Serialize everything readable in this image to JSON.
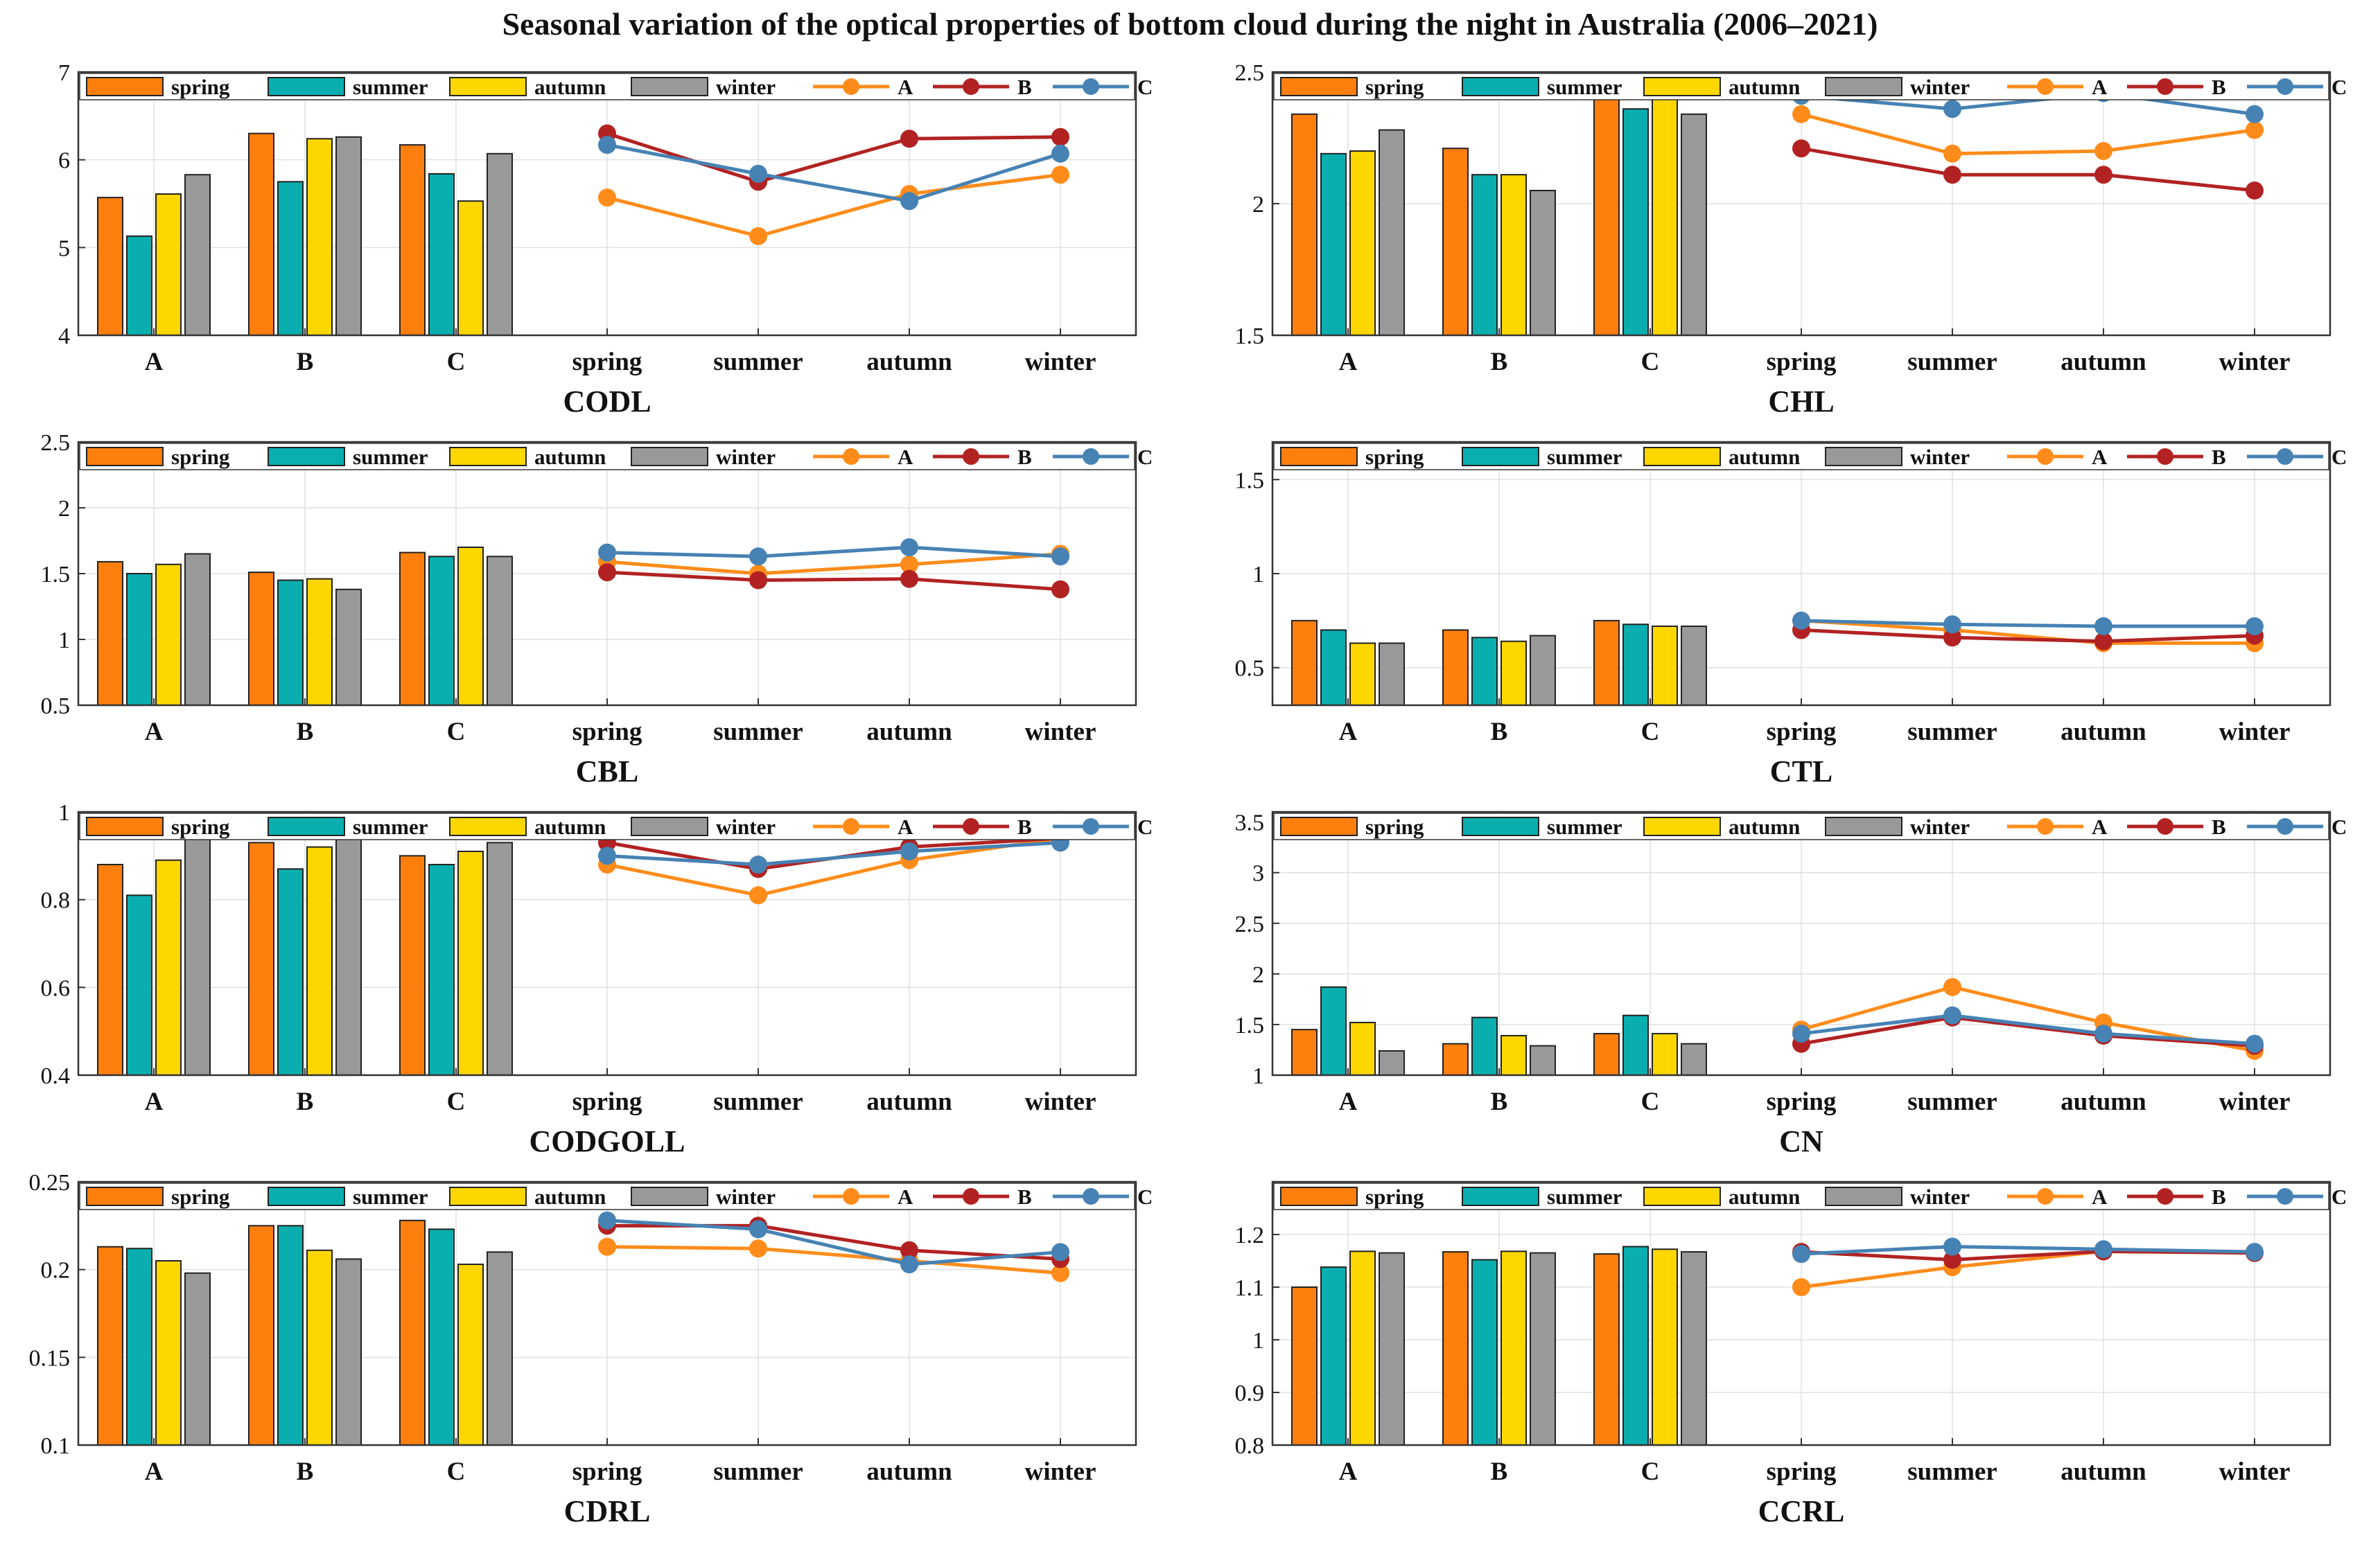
{
  "title": "Seasonal variation of the optical properties of bottom cloud during the night in Australia (2006–2021)",
  "colors": {
    "spring": "#ff7f0e",
    "summer": "#0aaeae",
    "autumn": "#ffd700",
    "winter": "#999999",
    "A": "#ff8c1a",
    "B": "#b22222",
    "C": "#4682b4"
  },
  "legend": {
    "bars": [
      "spring",
      "summer",
      "autumn",
      "winter"
    ],
    "lines": [
      "A",
      "B",
      "C"
    ]
  },
  "chart_data": [
    {
      "type": "bar+line",
      "title": "CODL",
      "ylim": [
        4,
        7
      ],
      "yticks": [
        "4",
        "5",
        "6",
        "7"
      ],
      "grid": true,
      "categories": [
        "A",
        "B",
        "C",
        "spring",
        "summer",
        "autumn",
        "winter"
      ],
      "bar_series": [
        {
          "name": "spring",
          "values": [
            5.57,
            6.3,
            6.17
          ]
        },
        {
          "name": "summer",
          "values": [
            5.13,
            5.75,
            5.84
          ]
        },
        {
          "name": "autumn",
          "values": [
            5.61,
            6.24,
            5.53
          ]
        },
        {
          "name": "winter",
          "values": [
            5.83,
            6.26,
            6.07
          ]
        }
      ],
      "line_series": [
        {
          "name": "A",
          "values": [
            5.57,
            5.13,
            5.61,
            5.83
          ]
        },
        {
          "name": "B",
          "values": [
            6.3,
            5.75,
            6.24,
            6.26
          ]
        },
        {
          "name": "C",
          "values": [
            6.17,
            5.84,
            5.53,
            6.07
          ]
        }
      ]
    },
    {
      "type": "bar+line",
      "title": "CHL",
      "ylim": [
        1.5,
        2.5
      ],
      "yticks": [
        "1.5",
        "2",
        "2.5"
      ],
      "grid": true,
      "categories": [
        "A",
        "B",
        "C",
        "spring",
        "summer",
        "autumn",
        "winter"
      ],
      "bar_series": [
        {
          "name": "spring",
          "values": [
            2.34,
            2.21,
            2.41
          ]
        },
        {
          "name": "summer",
          "values": [
            2.19,
            2.11,
            2.36
          ]
        },
        {
          "name": "autumn",
          "values": [
            2.2,
            2.11,
            2.42
          ]
        },
        {
          "name": "winter",
          "values": [
            2.28,
            2.05,
            2.34
          ]
        }
      ],
      "line_series": [
        {
          "name": "A",
          "values": [
            2.34,
            2.19,
            2.2,
            2.28
          ]
        },
        {
          "name": "B",
          "values": [
            2.21,
            2.11,
            2.11,
            2.05
          ]
        },
        {
          "name": "C",
          "values": [
            2.41,
            2.36,
            2.42,
            2.34
          ]
        }
      ]
    },
    {
      "type": "bar+line",
      "title": "CBL",
      "ylim": [
        0.5,
        2.5
      ],
      "yticks": [
        "0.5",
        "1",
        "1.5",
        "2",
        "2.5"
      ],
      "grid": true,
      "categories": [
        "A",
        "B",
        "C",
        "spring",
        "summer",
        "autumn",
        "winter"
      ],
      "bar_series": [
        {
          "name": "spring",
          "values": [
            1.59,
            1.51,
            1.66
          ]
        },
        {
          "name": "summer",
          "values": [
            1.5,
            1.45,
            1.63
          ]
        },
        {
          "name": "autumn",
          "values": [
            1.57,
            1.46,
            1.7
          ]
        },
        {
          "name": "winter",
          "values": [
            1.65,
            1.38,
            1.63
          ]
        }
      ],
      "line_series": [
        {
          "name": "A",
          "values": [
            1.59,
            1.5,
            1.57,
            1.65
          ]
        },
        {
          "name": "B",
          "values": [
            1.51,
            1.45,
            1.46,
            1.38
          ]
        },
        {
          "name": "C",
          "values": [
            1.66,
            1.63,
            1.7,
            1.63
          ]
        }
      ]
    },
    {
      "type": "bar+line",
      "title": "CTL",
      "ylim": [
        0.3,
        1.7
      ],
      "yticks": [
        "0.5",
        "1",
        "1.5"
      ],
      "grid": true,
      "categories": [
        "A",
        "B",
        "C",
        "spring",
        "summer",
        "autumn",
        "winter"
      ],
      "bar_series": [
        {
          "name": "spring",
          "values": [
            0.75,
            0.7,
            0.75
          ]
        },
        {
          "name": "summer",
          "values": [
            0.7,
            0.66,
            0.73
          ]
        },
        {
          "name": "autumn",
          "values": [
            0.63,
            0.64,
            0.72
          ]
        },
        {
          "name": "winter",
          "values": [
            0.63,
            0.67,
            0.72
          ]
        }
      ],
      "line_series": [
        {
          "name": "A",
          "values": [
            0.75,
            0.7,
            0.63,
            0.63
          ]
        },
        {
          "name": "B",
          "values": [
            0.7,
            0.66,
            0.64,
            0.67
          ]
        },
        {
          "name": "C",
          "values": [
            0.75,
            0.73,
            0.72,
            0.72
          ]
        }
      ]
    },
    {
      "type": "bar+line",
      "title": "CODGOLL",
      "ylim": [
        0.4,
        1.0
      ],
      "yticks": [
        "0.4",
        "0.6",
        "0.8",
        "1"
      ],
      "grid": true,
      "categories": [
        "A",
        "B",
        "C",
        "spring",
        "summer",
        "autumn",
        "winter"
      ],
      "bar_series": [
        {
          "name": "spring",
          "values": [
            0.88,
            0.93,
            0.9
          ]
        },
        {
          "name": "summer",
          "values": [
            0.81,
            0.87,
            0.88
          ]
        },
        {
          "name": "autumn",
          "values": [
            0.89,
            0.92,
            0.91
          ]
        },
        {
          "name": "winter",
          "values": [
            0.94,
            0.94,
            0.93
          ]
        }
      ],
      "line_series": [
        {
          "name": "A",
          "values": [
            0.88,
            0.81,
            0.89,
            0.94
          ]
        },
        {
          "name": "B",
          "values": [
            0.93,
            0.87,
            0.92,
            0.94
          ]
        },
        {
          "name": "C",
          "values": [
            0.9,
            0.88,
            0.91,
            0.93
          ]
        }
      ]
    },
    {
      "type": "bar+line",
      "title": "CN",
      "ylim": [
        1,
        3.6
      ],
      "yticks": [
        "1",
        "1.5",
        "2",
        "2.5",
        "3",
        "3.5"
      ],
      "grid": true,
      "categories": [
        "A",
        "B",
        "C",
        "spring",
        "summer",
        "autumn",
        "winter"
      ],
      "bar_series": [
        {
          "name": "spring",
          "values": [
            1.45,
            1.31,
            1.41
          ]
        },
        {
          "name": "summer",
          "values": [
            1.87,
            1.57,
            1.59
          ]
        },
        {
          "name": "autumn",
          "values": [
            1.52,
            1.39,
            1.41
          ]
        },
        {
          "name": "winter",
          "values": [
            1.24,
            1.29,
            1.31
          ]
        }
      ],
      "line_series": [
        {
          "name": "A",
          "values": [
            1.45,
            1.87,
            1.52,
            1.24
          ]
        },
        {
          "name": "B",
          "values": [
            1.31,
            1.57,
            1.39,
            1.29
          ]
        },
        {
          "name": "C",
          "values": [
            1.41,
            1.59,
            1.41,
            1.31
          ]
        }
      ]
    },
    {
      "type": "bar+line",
      "title": "CDRL",
      "ylim": [
        0.1,
        0.25
      ],
      "yticks": [
        "0.1",
        "0.15",
        "0.2",
        "0.25"
      ],
      "grid": true,
      "categories": [
        "A",
        "B",
        "C",
        "spring",
        "summer",
        "autumn",
        "winter"
      ],
      "bar_series": [
        {
          "name": "spring",
          "values": [
            0.213,
            0.225,
            0.228
          ]
        },
        {
          "name": "summer",
          "values": [
            0.212,
            0.225,
            0.223
          ]
        },
        {
          "name": "autumn",
          "values": [
            0.205,
            0.211,
            0.203
          ]
        },
        {
          "name": "winter",
          "values": [
            0.198,
            0.206,
            0.21
          ]
        }
      ],
      "line_series": [
        {
          "name": "A",
          "values": [
            0.213,
            0.212,
            0.205,
            0.198
          ]
        },
        {
          "name": "B",
          "values": [
            0.225,
            0.225,
            0.211,
            0.206
          ]
        },
        {
          "name": "C",
          "values": [
            0.228,
            0.223,
            0.203,
            0.21
          ]
        }
      ]
    },
    {
      "type": "bar+line",
      "title": "CCRL",
      "ylim": [
        0.8,
        1.3
      ],
      "yticks": [
        "0.8",
        "0.9",
        "1",
        "1.1",
        "1.2"
      ],
      "grid": true,
      "categories": [
        "A",
        "B",
        "C",
        "spring",
        "summer",
        "autumn",
        "winter"
      ],
      "bar_series": [
        {
          "name": "spring",
          "values": [
            1.1,
            1.167,
            1.163
          ]
        },
        {
          "name": "summer",
          "values": [
            1.138,
            1.152,
            1.177
          ]
        },
        {
          "name": "autumn",
          "values": [
            1.168,
            1.168,
            1.172
          ]
        },
        {
          "name": "winter",
          "values": [
            1.165,
            1.165,
            1.167
          ]
        }
      ],
      "line_series": [
        {
          "name": "A",
          "values": [
            1.1,
            1.138,
            1.168,
            1.165
          ]
        },
        {
          "name": "B",
          "values": [
            1.167,
            1.152,
            1.168,
            1.165
          ]
        },
        {
          "name": "C",
          "values": [
            1.163,
            1.177,
            1.172,
            1.167
          ]
        }
      ]
    }
  ]
}
